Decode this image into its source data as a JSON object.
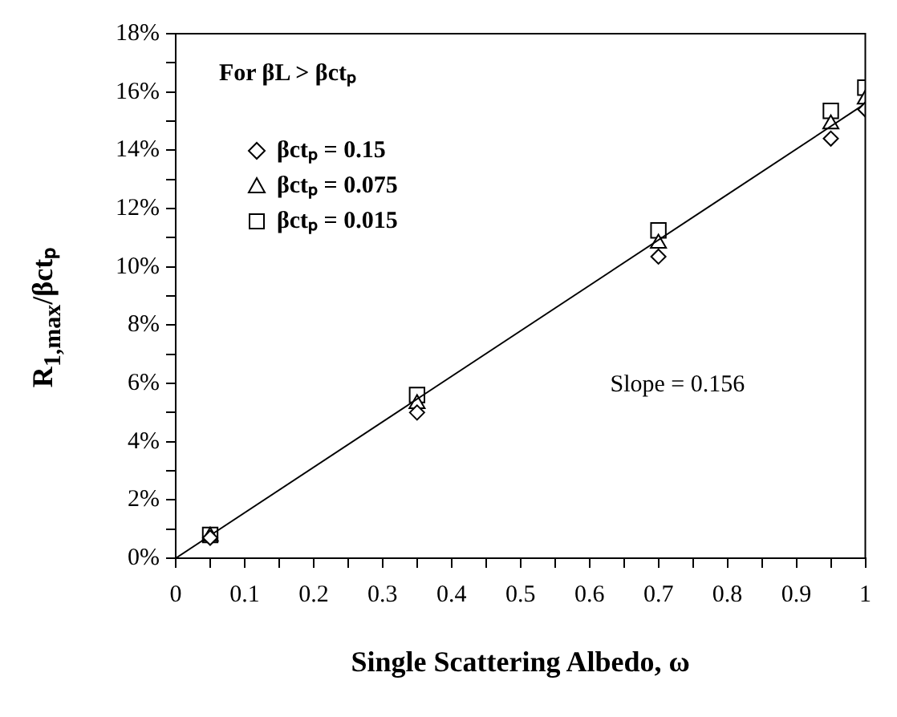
{
  "chart_data": {
    "type": "scatter",
    "xlabel": "Single Scattering Albedo, ω",
    "ylabel": "R$_{1,max}$/βctₚ",
    "annotations": [
      "For βL > βctₚ",
      "Slope = 0.156"
    ],
    "x": [
      0.05,
      0.35,
      0.7,
      0.95,
      1.0
    ],
    "series": [
      {
        "name": "βctₚ = 0.15",
        "color": "#000000",
        "marker": "diamond",
        "values": [
          0.7,
          5.0,
          10.35,
          14.4,
          15.4
        ]
      },
      {
        "name": "βctₚ = 0.075",
        "color": "#000000",
        "marker": "triangle",
        "values": [
          0.75,
          5.3,
          10.8,
          14.9,
          15.75
        ]
      },
      {
        "name": "βctₚ = 0.015",
        "color": "#000000",
        "marker": "square",
        "values": [
          0.8,
          5.6,
          11.25,
          15.35,
          16.15
        ]
      },
      {
        "type": "line",
        "color": "#000000",
        "marker": "none",
        "line_style": "solid",
        "x": [
          0,
          1
        ],
        "values": [
          0,
          15.6
        ]
      }
    ],
    "xlim": [
      0,
      1
    ],
    "xticks": [
      0,
      {
        "value": 0.05,
        "label": null
      },
      0.1,
      {
        "value": 0.15,
        "label": null
      },
      0.2,
      {
        "value": 0.25,
        "label": null
      },
      0.3,
      {
        "value": 0.35,
        "label": null
      },
      0.4,
      {
        "value": 0.45,
        "label": null
      },
      0.5,
      {
        "value": 0.55,
        "label": null
      },
      0.6,
      {
        "value": 0.65,
        "label": null
      },
      0.7,
      {
        "value": 0.75,
        "label": null
      },
      0.8,
      {
        "value": 0.85,
        "label": null
      },
      0.9,
      {
        "value": 0.95,
        "label": null
      },
      1
    ],
    "ylim": [
      0,
      18
    ],
    "yticks": [
      {
        "value": 0,
        "label": "0%"
      },
      {
        "value": 1,
        "label": null
      },
      {
        "value": 2,
        "label": "2%"
      },
      {
        "value": 3,
        "label": null
      },
      {
        "value": 4,
        "label": "4%"
      },
      {
        "value": 5,
        "label": null
      },
      {
        "value": 6,
        "label": "6%"
      },
      {
        "value": 7,
        "label": null
      },
      {
        "value": 8,
        "label": "8%"
      },
      {
        "value": 9,
        "label": null
      },
      {
        "value": 10,
        "label": "10%"
      },
      {
        "value": 11,
        "label": null
      },
      {
        "value": 12,
        "label": "12%"
      },
      {
        "value": 13,
        "label": null
      },
      {
        "value": 14,
        "label": "14%"
      },
      {
        "value": 15,
        "label": null
      },
      {
        "value": 16,
        "label": "16%"
      },
      {
        "value": 17,
        "label": null
      },
      {
        "value": 18,
        "label": "18%"
      }
    ],
    "grid": false,
    "legend": "top left"
  }
}
